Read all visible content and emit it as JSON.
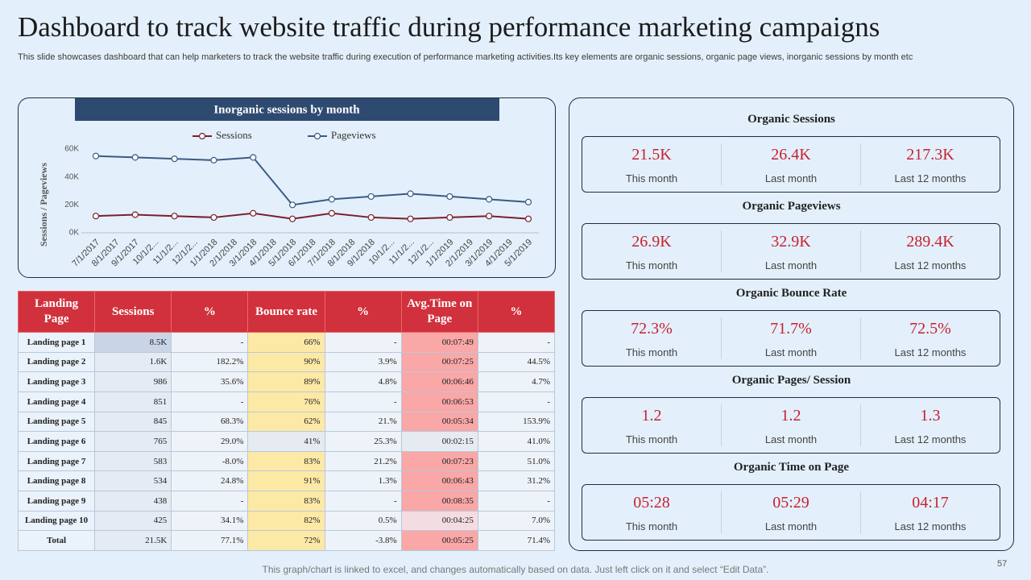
{
  "header": {
    "title": "Dashboard to track website traffic during performance marketing campaigns",
    "subtitle": "This slide showcases dashboard that can help marketers to track the website traffic during execution of performance marketing activities.Its key elements are organic sessions, organic page views, inorganic sessions by month etc"
  },
  "chart_data": {
    "type": "line",
    "title": "Inorganic sessions by month",
    "y_label": "Sessions / Pageviews",
    "categories": [
      "7/1/2017",
      "9/1/2017",
      "11/1/2...",
      "1/1/2018",
      "3/1/2018",
      "5/1/2018",
      "7/1/2018",
      "9/1/2018",
      "11/1/2...",
      "1/1/2019",
      "3/1/2019",
      "5/1/2019"
    ],
    "intermediate_labels": [
      "8/1/2017",
      "10/1/2...",
      "12/1/2...",
      "2/1/2018",
      "4/1/2018",
      "6/1/2018",
      "8/1/2018",
      "10/1/2...",
      "12/1/2...",
      "2/1/2019",
      "4/1/2019"
    ],
    "series": [
      {
        "name": "Sessions",
        "color": "#7b1e2e",
        "values": [
          12000,
          13000,
          12000,
          11000,
          14000,
          10000,
          14000,
          11000,
          10000,
          11000,
          12000,
          10000
        ]
      },
      {
        "name": "Pageviews",
        "color": "#3b5a82",
        "values": [
          55000,
          54000,
          53000,
          52000,
          54000,
          20000,
          24000,
          26000,
          28000,
          26000,
          24000,
          22000
        ]
      }
    ],
    "ylim": [
      0,
      60000
    ],
    "yticks": [
      {
        "value": 0,
        "label": "0K"
      },
      {
        "value": 20000,
        "label": "20K"
      },
      {
        "value": 40000,
        "label": "40K"
      },
      {
        "value": 60000,
        "label": "60K"
      }
    ],
    "legend": "top"
  },
  "table": {
    "columns": [
      "Landing Page",
      "Sessions",
      "%",
      "Bounce rate",
      "%",
      "Avg.Time on Page",
      "%"
    ],
    "rows": [
      [
        "Landing page 1",
        "8.5K",
        "-",
        "66%",
        "-",
        "00:07:49",
        "-"
      ],
      [
        "Landing page 2",
        "1.6K",
        "182.2%",
        "90%",
        "3.9%",
        "00:07:25",
        "44.5%"
      ],
      [
        "Landing page 3",
        "986",
        "35.6%",
        "89%",
        "4.8%",
        "00:06:46",
        "4.7%"
      ],
      [
        "Landing page 4",
        "851",
        "-",
        "76%",
        "-",
        "00:06:53",
        "-"
      ],
      [
        "Landing page 5",
        "845",
        "68.3%",
        "62%",
        "21.%",
        "00:05:34",
        "153.9%"
      ],
      [
        "Landing page 6",
        "765",
        "29.0%",
        "41%",
        "25.3%",
        "00:02:15",
        "41.0%"
      ],
      [
        "Landing page 7",
        "583",
        "-8.0%",
        "83%",
        "21.2%",
        "00:07:23",
        "51.0%"
      ],
      [
        "Landing page 8",
        "534",
        "24.8%",
        "91%",
        "1.3%",
        "00:06:43",
        "31.2%"
      ],
      [
        "Landing page 9",
        "438",
        "-",
        "83%",
        "-",
        "00:08:35",
        "-"
      ],
      [
        "Landing page 10",
        "425",
        "34.1%",
        "82%",
        "0.5%",
        "00:04:25",
        "7.0%"
      ],
      [
        "Total",
        "21.5K",
        "77.1%",
        "72%",
        "-3.8%",
        "00:05:25",
        "71.4%"
      ]
    ]
  },
  "kpis": [
    {
      "title": "Organic Sessions",
      "items": [
        {
          "value": "21.5K",
          "label": "This month"
        },
        {
          "value": "26.4K",
          "label": "Last month"
        },
        {
          "value": "217.3K",
          "label": "Last 12 months"
        }
      ]
    },
    {
      "title": "Organic Pageviews",
      "items": [
        {
          "value": "26.9K",
          "label": "This month"
        },
        {
          "value": "32.9K",
          "label": "Last month"
        },
        {
          "value": "289.4K",
          "label": "Last 12 months"
        }
      ]
    },
    {
      "title": "Organic Bounce Rate",
      "items": [
        {
          "value": "72.3%",
          "label": "This month"
        },
        {
          "value": "71.7%",
          "label": "Last month"
        },
        {
          "value": "72.5%",
          "label": "Last 12 months"
        }
      ]
    },
    {
      "title": "Organic Pages/ Session",
      "items": [
        {
          "value": "1.2",
          "label": "This month"
        },
        {
          "value": "1.2",
          "label": "Last month"
        },
        {
          "value": "1.3",
          "label": "Last 12 months"
        }
      ]
    },
    {
      "title": "Organic Time on Page",
      "items": [
        {
          "value": "05:28",
          "label": "This month"
        },
        {
          "value": "05:29",
          "label": "Last month"
        },
        {
          "value": "04:17",
          "label": "Last 12 months"
        }
      ]
    }
  ],
  "footer": "This graph/chart is linked to excel, and changes automatically based on data. Just left click on it and select “Edit Data”.",
  "page_number": "57"
}
